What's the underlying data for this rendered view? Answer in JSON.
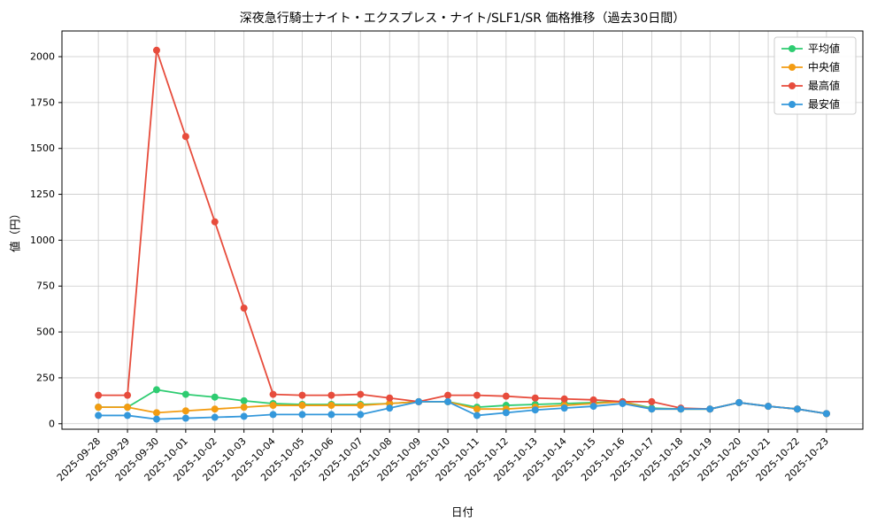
{
  "figure": {
    "background": "#ffffff",
    "grid_color": "#c9c9c9",
    "axis_color": "#000000",
    "legend_border_color": "#cccccc"
  },
  "chart_data": {
    "type": "line",
    "title": "深夜急行騎士ナイト・エクスプレス・ナイト/SLF1/SR 価格推移（過去30日間）",
    "xlabel": "日付",
    "ylabel": "値（円）",
    "ylim": [
      -30,
      2140
    ],
    "yticks": [
      0,
      250,
      500,
      750,
      1000,
      1250,
      1500,
      1750,
      2000
    ],
    "grid": true,
    "legend_position": "upper-right",
    "categories": [
      "2025-09-28",
      "2025-09-29",
      "2025-09-30",
      "2025-10-01",
      "2025-10-02",
      "2025-10-03",
      "2025-10-04",
      "2025-10-05",
      "2025-10-06",
      "2025-10-07",
      "2025-10-08",
      "2025-10-09",
      "2025-10-10",
      "2025-10-11",
      "2025-10-12",
      "2025-10-13",
      "2025-10-14",
      "2025-10-15",
      "2025-10-16",
      "2025-10-17",
      "2025-10-18",
      "2025-10-19",
      "2025-10-20",
      "2025-10-21",
      "2025-10-22",
      "2025-10-23"
    ],
    "series": [
      {
        "name": "平均値",
        "color": "#2ecc71",
        "values": [
          90,
          90,
          185,
          160,
          145,
          125,
          110,
          105,
          105,
          105,
          110,
          120,
          120,
          90,
          100,
          105,
          110,
          115,
          120,
          85,
          80,
          80,
          115,
          95,
          80,
          55
        ]
      },
      {
        "name": "中央値",
        "color": "#f39c12",
        "values": [
          90,
          90,
          60,
          70,
          80,
          90,
          100,
          100,
          100,
          100,
          110,
          120,
          120,
          80,
          80,
          90,
          100,
          110,
          120,
          80,
          80,
          80,
          115,
          95,
          80,
          55
        ]
      },
      {
        "name": "最高値",
        "color": "#e74c3c",
        "values": [
          155,
          155,
          2035,
          1565,
          1100,
          630,
          160,
          155,
          155,
          160,
          140,
          120,
          155,
          155,
          150,
          140,
          135,
          130,
          120,
          120,
          85,
          80,
          115,
          95,
          80,
          55
        ]
      },
      {
        "name": "最安値",
        "color": "#3498db",
        "values": [
          45,
          45,
          25,
          30,
          35,
          40,
          50,
          50,
          50,
          50,
          85,
          120,
          120,
          45,
          60,
          75,
          85,
          95,
          110,
          80,
          80,
          80,
          115,
          95,
          80,
          55
        ]
      }
    ]
  }
}
